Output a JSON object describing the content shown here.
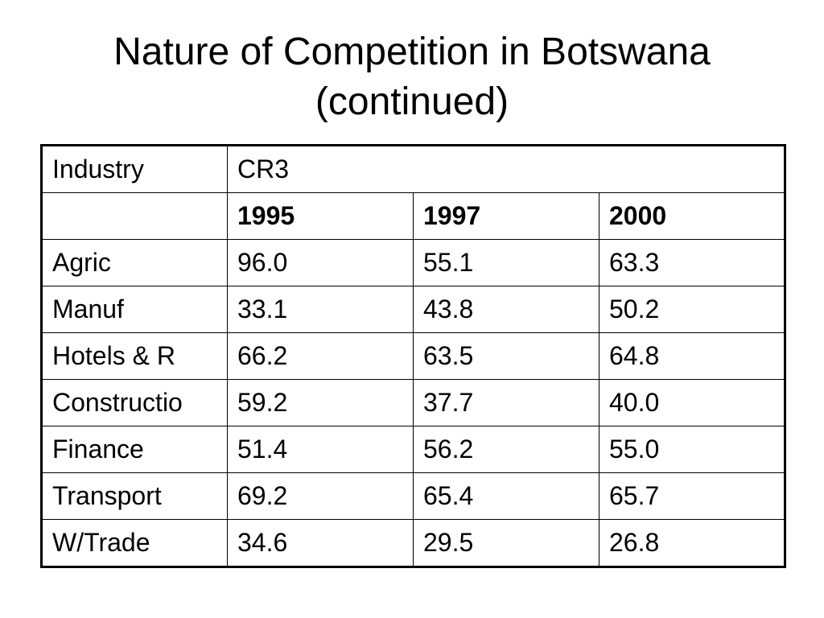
{
  "title": {
    "line1": "Nature of Competition in Botswana",
    "line2": "(continued)"
  },
  "table": {
    "industry_header": "Industry",
    "measure_header": "CR3",
    "years": [
      "1995",
      "1997",
      "2000"
    ],
    "rows": [
      {
        "industry": "Agric",
        "values": [
          "96.0",
          "55.1",
          "63.3"
        ]
      },
      {
        "industry": "Manuf",
        "values": [
          "33.1",
          "43.8",
          "50.2"
        ]
      },
      {
        "industry": "Hotels & R",
        "values": [
          "66.2",
          "63.5",
          "64.8"
        ]
      },
      {
        "industry": "Constructio",
        "values": [
          "59.2",
          "37.7",
          "40.0"
        ]
      },
      {
        "industry": "Finance",
        "values": [
          "51.4",
          "56.2",
          "55.0"
        ]
      },
      {
        "industry": "Transport",
        "values": [
          "69.2",
          "65.4",
          "65.7"
        ]
      },
      {
        "industry": "W/Trade",
        "values": [
          "34.6",
          "29.5",
          "26.8"
        ]
      }
    ]
  }
}
